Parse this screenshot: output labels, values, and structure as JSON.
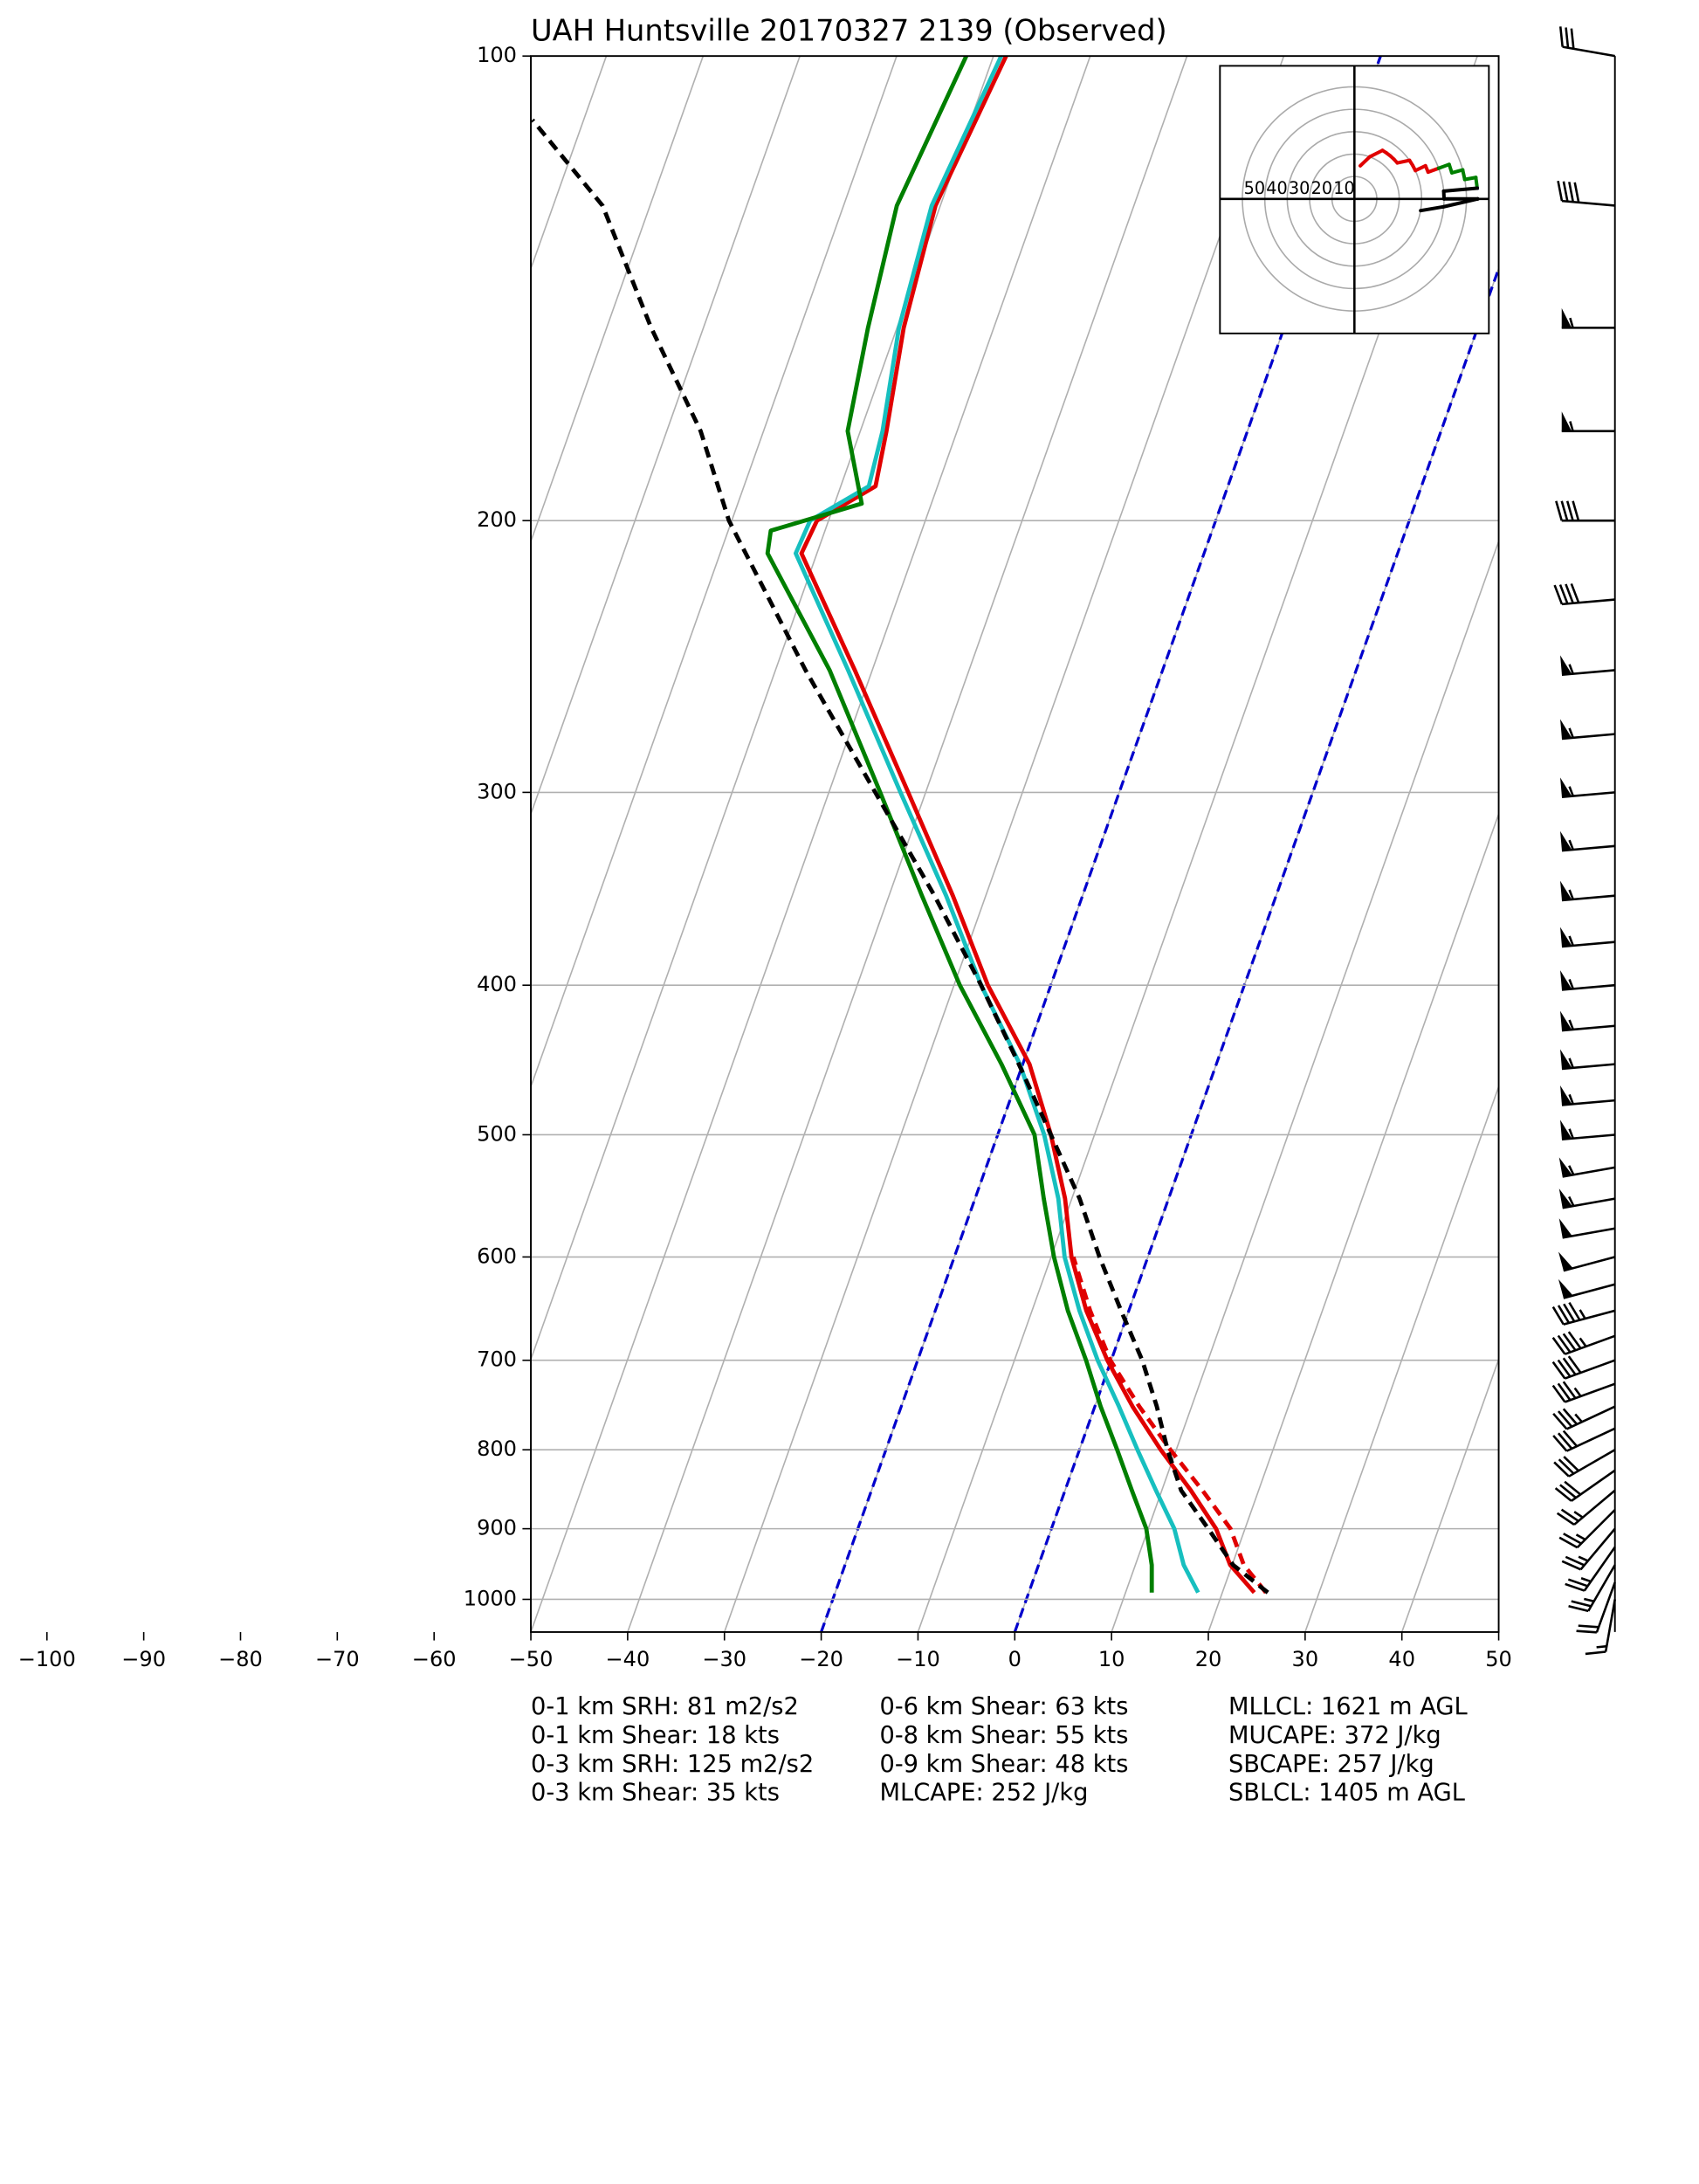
{
  "chart_data": {
    "type": "skewt",
    "title": "UAH Huntsville 20170327 2139   (Observed)",
    "xlim": [
      -50,
      50
    ],
    "xticks": [
      {
        "value": -100,
        "label": "−100"
      },
      {
        "value": -90,
        "label": "−90"
      },
      {
        "value": -80,
        "label": "−80"
      },
      {
        "value": -70,
        "label": "−70"
      },
      {
        "value": -60,
        "label": "−60"
      },
      {
        "value": -50,
        "label": "−50"
      },
      {
        "value": -40,
        "label": "−40"
      },
      {
        "value": -30,
        "label": "−30"
      },
      {
        "value": -20,
        "label": "−20"
      },
      {
        "value": -10,
        "label": "−10"
      },
      0,
      10,
      20,
      30,
      40,
      50
    ],
    "ylim": [
      1050,
      100
    ],
    "yticks": [
      100,
      200,
      300,
      400,
      500,
      600,
      700,
      800,
      900,
      1000
    ],
    "log_y": true,
    "grid": true,
    "highlight_isotherms": [
      -20,
      0
    ],
    "highlight_color": "#0000cc",
    "series": [
      {
        "color": "#e00000",
        "dash": false,
        "pressure": [
          990,
          950,
          900,
          850,
          800,
          750,
          700,
          650,
          600,
          550,
          500,
          450,
          400,
          350,
          300,
          250,
          210,
          200,
          190,
          175,
          150,
          125,
          100
        ],
        "values": [
          23.3,
          19.8,
          17.0,
          13.0,
          8.4,
          3.9,
          -0.4,
          -4.4,
          -7.9,
          -10.7,
          -14.5,
          -19.3,
          -26.5,
          -33.4,
          -41.8,
          -51.8,
          -61.6,
          -61.2,
          -56.4,
          -57.3,
          -59.3,
          -60.5,
          -58.7
        ]
      },
      {
        "color": "#e00000",
        "dash": true,
        "pressure": [
          990,
          950,
          900,
          850,
          800,
          750,
          700,
          650,
          600
        ],
        "values": [
          24.5,
          21.2,
          18.5,
          14.2,
          9.4,
          4.6,
          -0.1,
          -4.0,
          -7.7
        ]
      },
      {
        "color": "#17bfbf",
        "dash": false,
        "pressure": [
          990,
          950,
          900,
          850,
          800,
          750,
          700,
          650,
          600,
          550,
          500,
          450,
          400,
          350,
          300,
          250,
          210,
          200,
          190,
          175,
          150,
          125,
          100
        ],
        "values": [
          17.5,
          15.0,
          12.7,
          9.4,
          6.0,
          2.5,
          -1.4,
          -5.1,
          -8.6,
          -11.4,
          -15.2,
          -20.3,
          -27.2,
          -34.1,
          -42.6,
          -52.5,
          -62.2,
          -61.9,
          -57.1,
          -57.7,
          -59.8,
          -60.9,
          -59.2
        ]
      },
      {
        "color": "#007f00",
        "dash": false,
        "pressure": [
          990,
          950,
          900,
          850,
          800,
          750,
          700,
          650,
          600,
          550,
          500,
          450,
          400,
          350,
          300,
          250,
          210,
          203,
          195,
          175,
          150,
          125,
          100
        ],
        "values": [
          12.7,
          11.7,
          9.8,
          6.9,
          3.9,
          0.6,
          -2.6,
          -6.3,
          -9.7,
          -12.9,
          -16.2,
          -22.2,
          -29.4,
          -36.6,
          -44.7,
          -54.4,
          -65.1,
          -65.6,
          -57.2,
          -61.3,
          -63.0,
          -64.5,
          -62.8
        ]
      },
      {
        "color": "#000000",
        "dash": true,
        "pressure": [
          990,
          950,
          900,
          850,
          800,
          750,
          700,
          650,
          600,
          550,
          500,
          450,
          400,
          350,
          300,
          250,
          200,
          175,
          150,
          125,
          110
        ],
        "values": [
          24.7,
          20.1,
          16.2,
          12.0,
          9.1,
          6.4,
          3.2,
          -0.8,
          -5.0,
          -9.2,
          -14.5,
          -20.4,
          -27.2,
          -35.3,
          -45.2,
          -56.9,
          -70.3,
          -76.5,
          -85.4,
          -94.9,
          -105.3
        ]
      }
    ],
    "winds": {
      "pressure": [
        1000,
        975,
        950,
        925,
        900,
        875,
        850,
        825,
        800,
        775,
        750,
        725,
        700,
        675,
        650,
        625,
        600,
        575,
        550,
        525,
        500,
        475,
        450,
        425,
        400,
        375,
        350,
        325,
        300,
        275,
        250,
        225,
        200,
        175,
        150,
        125,
        100
      ],
      "speed": [
        15,
        20,
        25,
        25,
        25,
        25,
        25,
        30,
        30,
        30,
        35,
        35,
        40,
        45,
        45,
        50,
        50,
        50,
        55,
        55,
        55,
        55,
        55,
        55,
        55,
        55,
        55,
        55,
        55,
        55,
        55,
        40,
        40,
        55,
        55,
        40,
        30
      ],
      "direction": [
        190,
        200,
        210,
        215,
        220,
        225,
        230,
        235,
        240,
        245,
        245,
        250,
        250,
        250,
        255,
        255,
        255,
        260,
        260,
        260,
        265,
        265,
        265,
        265,
        265,
        265,
        265,
        265,
        265,
        265,
        265,
        265,
        270,
        270,
        270,
        275,
        280
      ]
    },
    "hodograph": {
      "rings": [
        10,
        20,
        30,
        40,
        50
      ],
      "layers": [
        {
          "bottom": 1000,
          "color": "#e00000"
        },
        {
          "bottom": 700,
          "color": "#008000"
        },
        {
          "bottom": 450,
          "color": "#0000ff"
        },
        {
          "bottom": 300,
          "color": "#000000"
        }
      ]
    },
    "stats": [
      [
        "0-1 km SRH: 81 m2/s2",
        "0-1 km Shear: 18 kts",
        "0-3 km SRH: 125 m2/s2",
        "0-3 km Shear: 35 kts"
      ],
      [
        "0-6 km Shear: 63 kts",
        "0-8 km Shear: 55 kts",
        "0-9 km Shear: 48 kts",
        "MLCAPE: 252 J/kg"
      ],
      [
        "MLLCL: 1621 m AGL",
        "MUCAPE: 372 J/kg",
        "SBCAPE: 257 J/kg",
        "SBLCL: 1405 m AGL"
      ]
    ]
  }
}
